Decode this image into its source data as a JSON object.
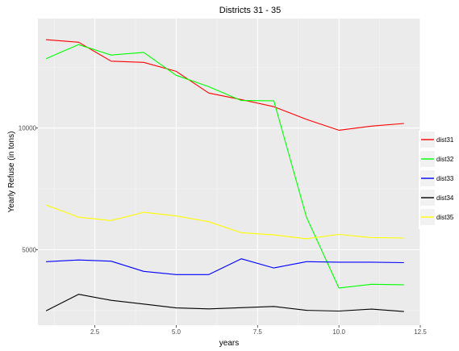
{
  "chart_data": {
    "type": "line",
    "title": "Districts 31 - 35",
    "xlabel": "years",
    "ylabel": "Yearly Refuse (in tons)",
    "xlim": [
      0.75,
      12.5
    ],
    "ylim": [
      1900,
      14500
    ],
    "x_ticks": [
      2.5,
      5.0,
      7.5,
      10.0,
      12.5
    ],
    "x_tick_labels": [
      "2.5",
      "5.0",
      "7.5",
      "10.0",
      "12.5"
    ],
    "y_ticks": [
      5000,
      10000
    ],
    "y_tick_labels": [
      "5000",
      "10000"
    ],
    "grid": true,
    "panel_background": "#ebebeb",
    "grid_color": "#ffffff",
    "legend_position": "right",
    "x": [
      1,
      2,
      3,
      4,
      5,
      6,
      7,
      8,
      9,
      10,
      11,
      12
    ],
    "series": [
      {
        "name": "dist31",
        "color": "#ff0000",
        "values": [
          13630,
          13530,
          12750,
          12700,
          12330,
          11440,
          11170,
          10880,
          10360,
          9910,
          10080,
          10190
        ]
      },
      {
        "name": "dist32",
        "color": "#00ff00",
        "values": [
          12850,
          13430,
          13000,
          13110,
          12170,
          11700,
          11130,
          11120,
          6350,
          3430,
          3580,
          3560
        ]
      },
      {
        "name": "dist33",
        "color": "#0000ff",
        "values": [
          4510,
          4580,
          4530,
          4110,
          3980,
          3980,
          4630,
          4250,
          4510,
          4490,
          4490,
          4470
        ]
      },
      {
        "name": "dist34",
        "color": "#000000",
        "values": [
          2490,
          3170,
          2920,
          2770,
          2610,
          2570,
          2620,
          2670,
          2510,
          2480,
          2560,
          2460
        ]
      },
      {
        "name": "dist35",
        "color": "#ffff00",
        "values": [
          6840,
          6340,
          6200,
          6540,
          6390,
          6150,
          5700,
          5610,
          5450,
          5630,
          5500,
          5480
        ]
      }
    ]
  }
}
